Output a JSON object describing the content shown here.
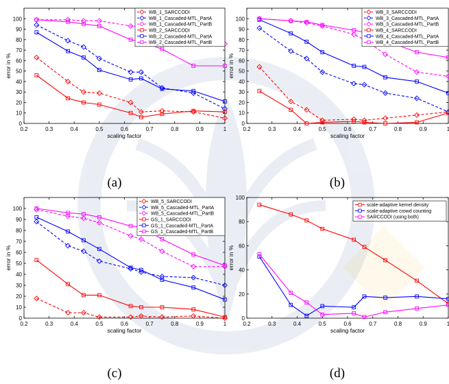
{
  "chart_data": [
    {
      "type": "line",
      "caption": "(a)",
      "xlabel": "scaling factor",
      "ylabel": "error in %",
      "xlim": [
        0.2,
        1
      ],
      "ylim": [
        0,
        110
      ],
      "xticks": [
        "0.2",
        "0.3",
        "0.4",
        "0.5",
        "0.6",
        "0.7",
        "0.8",
        "0.9",
        "1"
      ],
      "yticks": [
        "0",
        "10",
        "20",
        "30",
        "40",
        "50",
        "60",
        "70",
        "80",
        "90",
        "100"
      ],
      "x": [
        0.25,
        0.375,
        0.4375,
        0.5,
        0.625,
        0.6667,
        0.75,
        0.875,
        1.0
      ],
      "legend_position": "top-right",
      "series": [
        {
          "name": "WB_1_SARCCODI",
          "color": "#ff0000",
          "style": "dashed",
          "marker": "diamond",
          "values": [
            63,
            40,
            30,
            29,
            20,
            11,
            12,
            11,
            5
          ]
        },
        {
          "name": "WB_1_Cascaded-MTL_PartA",
          "color": "#0000ff",
          "style": "dashed",
          "marker": "diamond",
          "values": [
            94,
            79,
            73,
            62,
            49,
            49,
            34,
            29,
            14
          ]
        },
        {
          "name": "WB_1_Cascaded-MTL_PartB",
          "color": "#ff00ff",
          "style": "dashed",
          "marker": "diamond",
          "values": [
            99,
            99,
            98,
            98,
            93,
            92,
            88,
            76,
            76
          ]
        },
        {
          "name": "WB_2_SARCCODI",
          "color": "#ff0000",
          "style": "solid",
          "marker": "square",
          "values": [
            46,
            24,
            20,
            18,
            10,
            6,
            9,
            12,
            11
          ]
        },
        {
          "name": "WB_2_Cascaded-MTL_PartA",
          "color": "#0000ff",
          "style": "solid",
          "marker": "square",
          "values": [
            87,
            69,
            63,
            51,
            42,
            43,
            33,
            31,
            21
          ]
        },
        {
          "name": "WB_2_Cascaded-MTL_PartB",
          "color": "#ff00ff",
          "style": "solid",
          "marker": "square",
          "values": [
            99,
            97,
            95,
            93,
            80,
            78,
            71,
            55,
            55
          ]
        }
      ]
    },
    {
      "type": "line",
      "caption": "(b)",
      "xlabel": "scaling factor",
      "ylabel": "error in %",
      "xlim": [
        0.2,
        1
      ],
      "ylim": [
        0,
        110
      ],
      "xticks": [
        "0.2",
        "0.3",
        "0.4",
        "0.5",
        "0.6",
        "0.7",
        "0.8",
        "0.9",
        "1"
      ],
      "yticks": [
        "0",
        "10",
        "20",
        "30",
        "40",
        "50",
        "60",
        "70",
        "80",
        "90",
        "100"
      ],
      "x": [
        0.25,
        0.375,
        0.4375,
        0.5,
        0.625,
        0.6667,
        0.75,
        0.875,
        1.0
      ],
      "legend_position": "top-right",
      "series": [
        {
          "name": "WB_3_SARCCODI",
          "color": "#ff0000",
          "style": "dashed",
          "marker": "diamond",
          "values": [
            54,
            21,
            13,
            3,
            4,
            3,
            5,
            8,
            11
          ]
        },
        {
          "name": "WB_3_Cascaded-MTL_PartA",
          "color": "#0000ff",
          "style": "dashed",
          "marker": "diamond",
          "values": [
            91,
            69,
            62,
            49,
            38,
            37,
            29,
            24,
            11
          ]
        },
        {
          "name": "WB_3_Cascaded-MTL_PartB",
          "color": "#ff00ff",
          "style": "dashed",
          "marker": "diamond",
          "values": [
            100,
            98,
            96,
            93,
            85,
            80,
            66,
            49,
            45
          ]
        },
        {
          "name": "WB_4_SARCCODI",
          "color": "#ff0000",
          "style": "solid",
          "marker": "square",
          "values": [
            31,
            13,
            0,
            1,
            2,
            1,
            0,
            1,
            10
          ]
        },
        {
          "name": "WB_4_Cascaded-MTL_PartA",
          "color": "#0000ff",
          "style": "solid",
          "marker": "square",
          "values": [
            99,
            86,
            78,
            68,
            55,
            54,
            44,
            40,
            29
          ]
        },
        {
          "name": "WB_4_Cascaded-MTL_PartB",
          "color": "#ff00ff",
          "style": "solid",
          "marker": "square",
          "values": [
            100,
            98,
            97,
            94,
            89,
            87,
            79,
            68,
            63
          ]
        }
      ]
    },
    {
      "type": "line",
      "caption": "(c)",
      "xlabel": "scaling factor",
      "ylabel": "error in %",
      "xlim": [
        0.2,
        1
      ],
      "ylim": [
        0,
        110
      ],
      "xticks": [
        "0.2",
        "0.3",
        "0.4",
        "0.5",
        "0.6",
        "0.7",
        "0.8",
        "0.9",
        "1"
      ],
      "yticks": [
        "0",
        "10",
        "20",
        "30",
        "40",
        "50",
        "60",
        "70",
        "80",
        "90",
        "100"
      ],
      "x": [
        0.25,
        0.375,
        0.4375,
        0.5,
        0.625,
        0.6667,
        0.75,
        0.875,
        1.0
      ],
      "legend_position": "top-right",
      "series": [
        {
          "name": "WB_5_SARCCODI",
          "color": "#ff0000",
          "style": "dashed",
          "marker": "diamond",
          "values": [
            18,
            5,
            5,
            1,
            1,
            2,
            1,
            2,
            0
          ]
        },
        {
          "name": "WB_5_Cascaded-MTL_PartA",
          "color": "#0000ff",
          "style": "dashed",
          "marker": "diamond",
          "values": [
            88,
            66,
            61,
            52,
            45,
            42,
            38,
            37,
            30
          ]
        },
        {
          "name": "WB_5_Cascaded-MTL_PartB",
          "color": "#ff00ff",
          "style": "dashed",
          "marker": "diamond",
          "values": [
            99,
            93,
            91,
            87,
            75,
            72,
            61,
            47,
            47
          ]
        },
        {
          "name": "GS_1_SARCCODI",
          "color": "#ff0000",
          "style": "solid",
          "marker": "square",
          "values": [
            53,
            31,
            21,
            21,
            11,
            10,
            10,
            8,
            1
          ]
        },
        {
          "name": "GS_1_Cascaded-MTL_PartA",
          "color": "#0000ff",
          "style": "solid",
          "marker": "square",
          "values": [
            92,
            79,
            71,
            63,
            46,
            44,
            35,
            28,
            17
          ]
        },
        {
          "name": "GS_1_Cascaded-MTL_PartB",
          "color": "#ff00ff",
          "style": "solid",
          "marker": "square",
          "values": [
            100,
            96,
            95,
            92,
            84,
            83,
            72,
            58,
            48
          ]
        }
      ]
    },
    {
      "type": "line",
      "caption": "(d)",
      "xlabel": "scaling factor",
      "ylabel": "error in %",
      "xlim": [
        0.2,
        1
      ],
      "ylim": [
        0,
        100
      ],
      "xticks": [
        "0.2",
        "0.3",
        "0.4",
        "0.5",
        "0.6",
        "0.7",
        "0.8",
        "0.9",
        "1"
      ],
      "yticks": [
        "0",
        "20",
        "40",
        "60",
        "80",
        "100"
      ],
      "x": [
        0.25,
        0.375,
        0.4375,
        0.5,
        0.625,
        0.6667,
        0.75,
        0.875,
        1.0
      ],
      "legend_position": "top-right",
      "series": [
        {
          "name": "scale-adaptive kernel density",
          "color": "#ff0000",
          "style": "solid",
          "marker": "square",
          "values": [
            94,
            86,
            81,
            74,
            65,
            59,
            48,
            31,
            12
          ]
        },
        {
          "name": "scale-adaptive crowd counting",
          "color": "#0000ff",
          "style": "solid",
          "marker": "square",
          "values": [
            51,
            11,
            2,
            10,
            9,
            18,
            17,
            18,
            16
          ]
        },
        {
          "name": "SARCCODI (using both)",
          "color": "#ff00ff",
          "style": "solid",
          "marker": "square",
          "values": [
            53,
            21,
            13,
            3,
            4,
            1,
            5,
            8,
            11
          ]
        }
      ]
    }
  ]
}
